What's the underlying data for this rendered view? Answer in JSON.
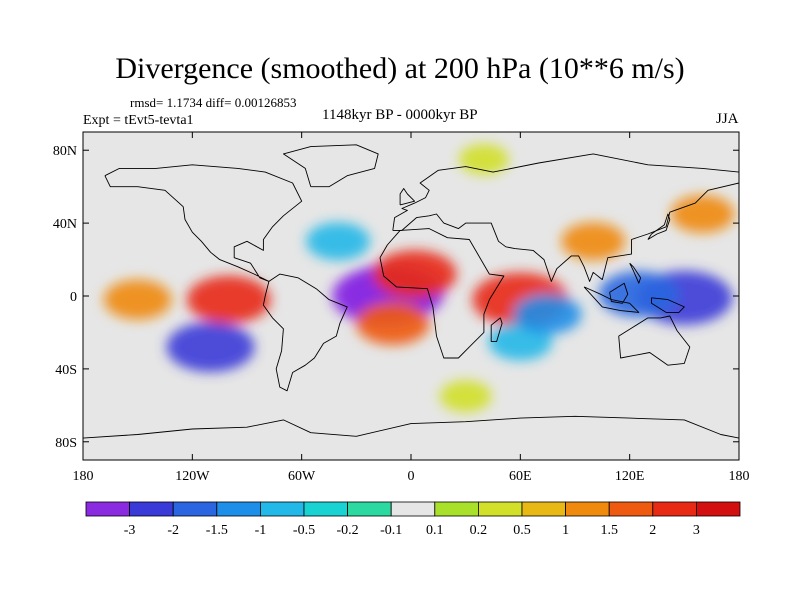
{
  "chart_data": {
    "type": "heatmap",
    "title": "Divergence (smoothed) at 200 hPa (10**6 m/s)",
    "stats": "rmsd= 1.1734 diff= 0.00126853",
    "experiment": "Expt = tEvt5-tevta1",
    "period": "1148kyr BP - 0000kyr BP",
    "season": "JJA",
    "x_axis": {
      "min": -180,
      "max": 180,
      "ticks": [
        -180,
        -120,
        -60,
        0,
        60,
        120,
        180
      ],
      "tick_labels": [
        "180",
        "120W",
        "60W",
        "0",
        "60E",
        "120E",
        "180"
      ]
    },
    "y_axis": {
      "min": -90,
      "max": 90,
      "ticks": [
        80,
        40,
        0,
        -40,
        -80
      ],
      "tick_labels": [
        "80N",
        "40N",
        "0",
        "40S",
        "80S"
      ]
    },
    "colorbar": {
      "labels": [
        "-3",
        "-2",
        "-1.5",
        "-1",
        "-0.5",
        "-0.2",
        "-0.1",
        "0.1",
        "0.2",
        "0.5",
        "1",
        "1.5",
        "2",
        "3"
      ],
      "colors": [
        "#8a2be2",
        "#3a3ad8",
        "#2a66e0",
        "#1e8fe8",
        "#22b8e8",
        "#19d2d2",
        "#2cd9a0",
        "#e6e6e6",
        "#a8e02a",
        "#d2e02a",
        "#e8b814",
        "#f08a0f",
        "#ee5a10",
        "#e82a14",
        "#d40f0f"
      ]
    },
    "features": [
      {
        "name": "Tropical Atlantic convergence minimum",
        "lon": -15,
        "lat": 0,
        "value": -3.2
      },
      {
        "name": "Atlantic convergence core",
        "lon": -10,
        "lat": 2,
        "value": -3.5
      },
      {
        "name": "Western Pacific warm pool convergence",
        "lon": 150,
        "lat": -1,
        "value": -2.6
      },
      {
        "name": "Maritime continent convergence",
        "lon": 125,
        "lat": 1,
        "value": -1.8
      },
      {
        "name": "West Africa / Sahel divergence",
        "lon": 2,
        "lat": 12,
        "value": 2.0
      },
      {
        "name": "Equatorial Indian Ocean divergence",
        "lon": 60,
        "lat": -2,
        "value": 2.6
      },
      {
        "name": "East Pacific divergence",
        "lon": -100,
        "lat": -2,
        "value": 2.0
      },
      {
        "name": "Central Pacific divergence",
        "lon": -150,
        "lat": -2,
        "value": 1.2
      },
      {
        "name": "South Atlantic divergence band",
        "lon": -10,
        "lat": -15,
        "value": 1.5
      },
      {
        "name": "South Pacific convergence",
        "lon": -110,
        "lat": -28,
        "value": -2.2
      },
      {
        "name": "South Indian convergence",
        "lon": 60,
        "lat": -25,
        "value": -1.0
      },
      {
        "name": "Tropical Indian convergence",
        "lon": 75,
        "lat": -10,
        "value": -1.2
      },
      {
        "name": "North Atlantic convergence",
        "lon": -40,
        "lat": 30,
        "value": -1.0
      },
      {
        "name": "East Asia divergence",
        "lon": 100,
        "lat": 30,
        "value": 1.0
      },
      {
        "name": "North Pacific divergence",
        "lon": 160,
        "lat": 45,
        "value": 1.0
      },
      {
        "name": "Southern Ocean band",
        "lon": 30,
        "lat": -55,
        "value": 0.4
      },
      {
        "name": "Arctic region",
        "lon": 40,
        "lat": 75,
        "value": 0.3
      }
    ]
  }
}
